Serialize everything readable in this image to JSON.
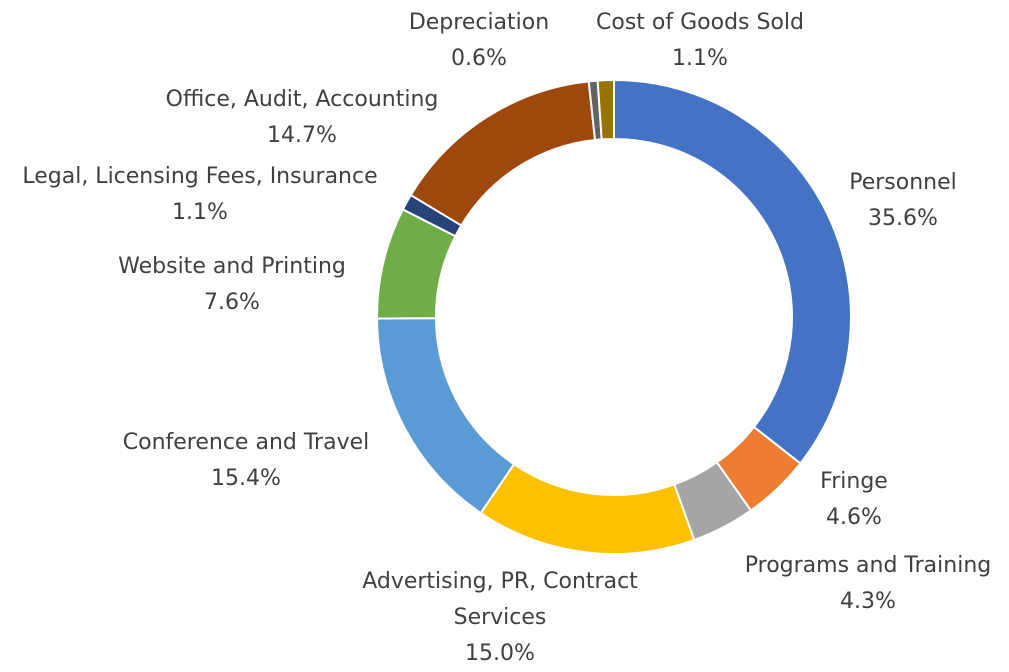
{
  "chart_data": {
    "type": "donut",
    "categories": [
      "Personnel",
      "Fringe",
      "Programs and Training",
      "Advertising, PR, Contract Services",
      "Conference and Travel",
      "Website and Printing",
      "Legal, Licensing Fees, Insurance",
      "Office, Audit, Accounting",
      "Depreciation",
      "Cost of Goods Sold"
    ],
    "values": [
      35.6,
      4.6,
      4.3,
      15.0,
      15.4,
      7.6,
      1.1,
      14.7,
      0.6,
      1.1
    ],
    "value_labels": [
      "35.6%",
      "4.6%",
      "4.3%",
      "15.0%",
      "15.4%",
      "7.6%",
      "1.1%",
      "14.7%",
      "0.6%",
      "1.1%"
    ],
    "colors": [
      "#4472c4",
      "#ed7d31",
      "#a5a5a5",
      "#ffc000",
      "#5b9bd5",
      "#70ad47",
      "#264478",
      "#9e480e",
      "#636363",
      "#997300"
    ]
  }
}
